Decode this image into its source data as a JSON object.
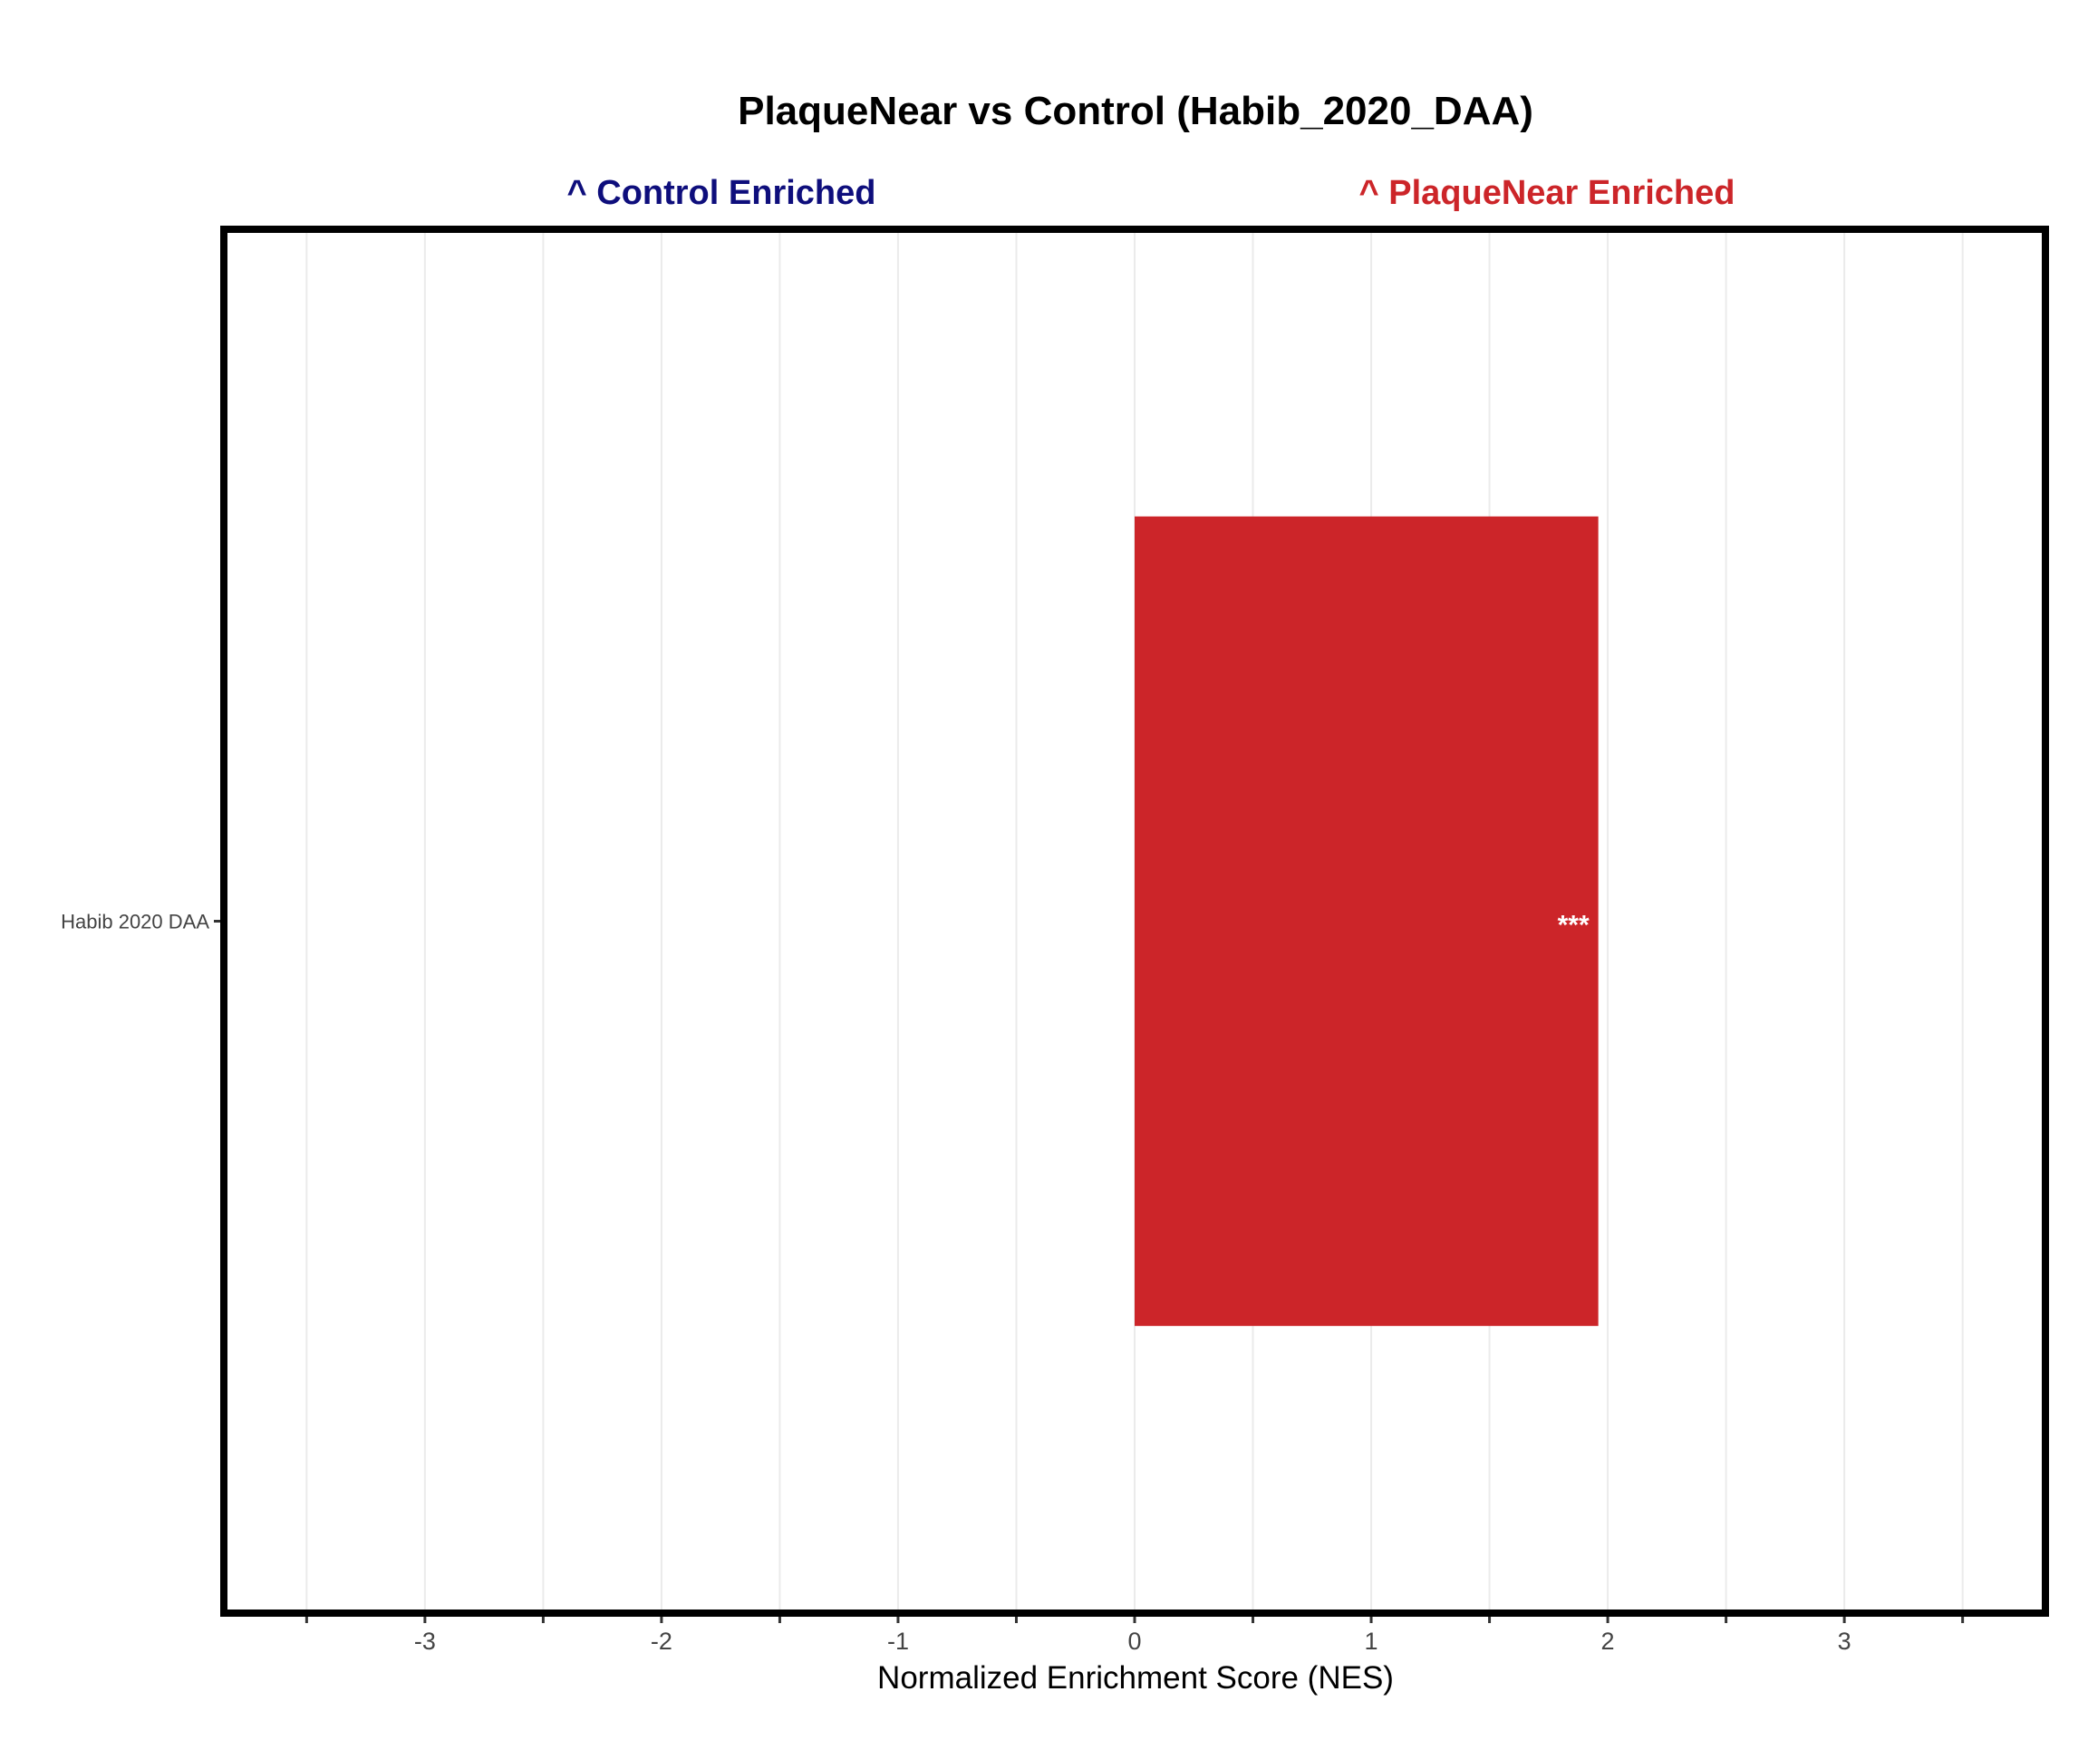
{
  "chart_data": {
    "type": "bar",
    "orientation": "horizontal",
    "title": "PlaqueNear vs Control (Habib_2020_DAA)",
    "xlabel": "Normalized Enrichment Score (NES)",
    "ylabel": "",
    "left_annotation": "^ Control Enriched",
    "right_annotation": "^ PlaqueNear Enriched",
    "categories": [
      "Habib 2020 DAA"
    ],
    "values": [
      1.96
    ],
    "significance": [
      "***"
    ],
    "xlim": [
      -3.85,
      3.85
    ],
    "major_ticks": [
      -3,
      -2,
      -1,
      0,
      1,
      2,
      3
    ],
    "tick_labels": [
      "-3",
      "-2",
      "-1",
      "0",
      "1",
      "2",
      "3"
    ],
    "minor_ticks": [
      -3.5,
      -2.5,
      -1.5,
      -0.5,
      0.5,
      1.5,
      2.5,
      3.5
    ],
    "grid": true,
    "colors": {
      "bar_positive": "#CC2529",
      "left_annotation": "#0E0E7C",
      "right_annotation": "#CC2529",
      "gridline": "#EBEBEB",
      "panel_border": "#000000"
    }
  }
}
